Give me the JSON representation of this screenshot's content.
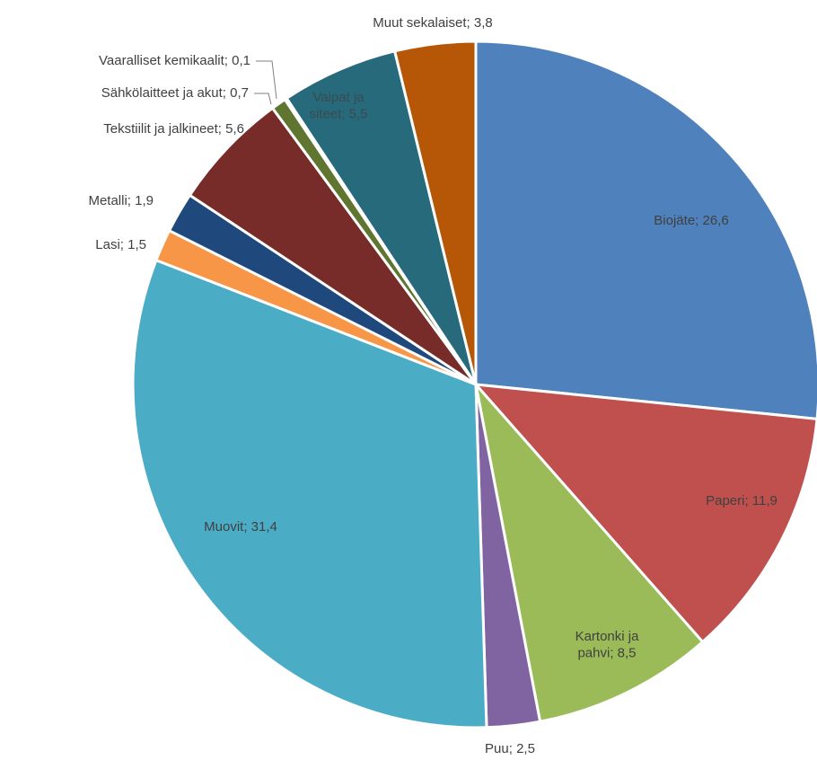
{
  "chart_data": {
    "type": "pie",
    "title": "",
    "slices": [
      {
        "label": "Biojäte; 26,6",
        "name": "Biojäte",
        "value": 26.6,
        "color": "#4F81BD"
      },
      {
        "label": "Paperi; 11,9",
        "name": "Paperi",
        "value": 11.9,
        "color": "#C0504D"
      },
      {
        "label": "Kartonki ja pahvi; 8,5",
        "name": "Kartonki ja pahvi",
        "value": 8.5,
        "color": "#9BBB59"
      },
      {
        "label": "Puu; 2,5",
        "name": "Puu",
        "value": 2.5,
        "color": "#8064A2"
      },
      {
        "label": "Muovit; 31,4",
        "name": "Muovit",
        "value": 31.4,
        "color": "#4BACC6"
      },
      {
        "label": "Lasi; 1,5",
        "name": "Lasi",
        "value": 1.5,
        "color": "#F79646"
      },
      {
        "label": "Metalli; 1,9",
        "name": "Metalli",
        "value": 1.9,
        "color": "#1F497D"
      },
      {
        "label": "Tekstiilit ja jalkineet; 5,6",
        "name": "Tekstiilit ja jalkineet",
        "value": 5.6,
        "color": "#772C2A"
      },
      {
        "label": "Sähkölaitteet ja akut; 0,7",
        "name": "Sähkölaitteet ja akut",
        "value": 0.7,
        "color": "#5F7530"
      },
      {
        "label": "Vaaralliset kemikaalit; 0,1",
        "name": "Vaaralliset kemikaalit",
        "value": 0.1,
        "color": "#4D3B62"
      },
      {
        "label": "Vaipat ja siteet; 5,5",
        "name": "Vaipat ja siteet",
        "value": 5.5,
        "color": "#276A7C"
      },
      {
        "label": "Muut sekalaiset; 3,8",
        "name": "Muut sekalaiset",
        "value": 3.8,
        "color": "#B65708"
      }
    ]
  }
}
